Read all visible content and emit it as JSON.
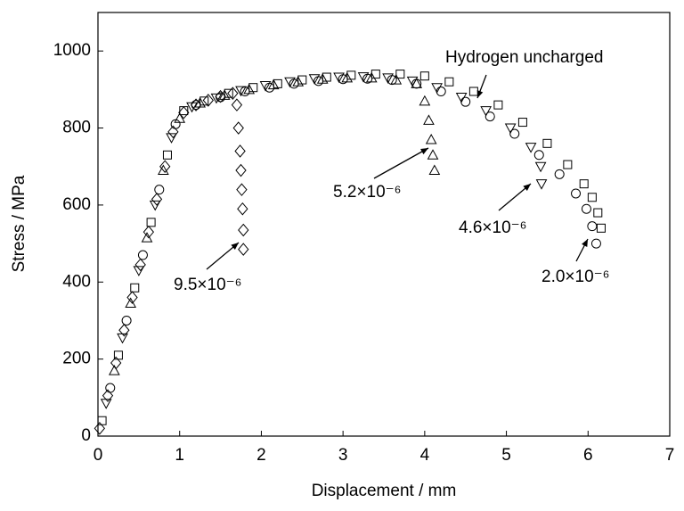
{
  "chart_data": {
    "type": "scatter",
    "x_label": "Displacement / mm",
    "y_label": "Stress / MPa",
    "xlim": [
      0,
      7
    ],
    "xticks": [
      0,
      1,
      2,
      3,
      4,
      5,
      6,
      7
    ],
    "ylim": [
      0,
      1100
    ],
    "yticks": [
      0,
      200,
      400,
      600,
      800,
      1000
    ],
    "series": [
      {
        "name": "Hydrogen uncharged",
        "marker": "square",
        "color": "#000000",
        "x": [
          0.05,
          0.25,
          0.45,
          0.65,
          0.85,
          1.05,
          1.3,
          1.6,
          1.9,
          2.2,
          2.5,
          2.8,
          3.1,
          3.4,
          3.7,
          4.0,
          4.3,
          4.6,
          4.9,
          5.2,
          5.5,
          5.75,
          5.95,
          6.05,
          6.12,
          6.16
        ],
        "values": [
          40,
          210,
          385,
          555,
          730,
          845,
          870,
          890,
          905,
          915,
          925,
          932,
          937,
          940,
          940,
          935,
          920,
          895,
          860,
          815,
          760,
          705,
          655,
          620,
          580,
          540
        ]
      },
      {
        "name": "2.0×10⁻⁶",
        "marker": "circle",
        "color": "#000000",
        "x": [
          0.15,
          0.35,
          0.55,
          0.75,
          0.95,
          1.2,
          1.5,
          1.8,
          2.1,
          2.4,
          2.7,
          3.0,
          3.3,
          3.6,
          3.9,
          4.2,
          4.5,
          4.8,
          5.1,
          5.4,
          5.65,
          5.85,
          5.98,
          6.05,
          6.1
        ],
        "values": [
          125,
          300,
          470,
          640,
          810,
          860,
          880,
          895,
          905,
          915,
          922,
          927,
          928,
          925,
          915,
          895,
          868,
          830,
          785,
          730,
          680,
          630,
          590,
          545,
          500
        ]
      },
      {
        "name": "4.6×10⁻⁶",
        "marker": "triangle-down",
        "color": "#000000",
        "x": [
          0.1,
          0.3,
          0.5,
          0.7,
          0.9,
          1.15,
          1.45,
          1.75,
          2.05,
          2.35,
          2.65,
          2.95,
          3.25,
          3.55,
          3.85,
          4.15,
          4.45,
          4.75,
          5.05,
          5.3,
          5.42,
          5.43
        ],
        "values": [
          85,
          255,
          430,
          600,
          775,
          855,
          878,
          897,
          910,
          920,
          928,
          932,
          933,
          930,
          922,
          905,
          880,
          845,
          800,
          750,
          700,
          655
        ]
      },
      {
        "name": "5.2×10⁻⁶",
        "marker": "triangle-up",
        "color": "#000000",
        "x": [
          0.2,
          0.4,
          0.6,
          0.8,
          1.0,
          1.25,
          1.55,
          1.85,
          2.15,
          2.45,
          2.75,
          3.05,
          3.35,
          3.65,
          3.9,
          4.0,
          4.05,
          4.08,
          4.1,
          4.12
        ],
        "values": [
          170,
          345,
          515,
          690,
          825,
          865,
          885,
          900,
          912,
          920,
          927,
          930,
          930,
          925,
          915,
          870,
          820,
          770,
          730,
          690
        ]
      },
      {
        "name": "9.5×10⁻⁶",
        "marker": "diamond",
        "color": "#000000",
        "x": [
          0.02,
          0.12,
          0.22,
          0.32,
          0.42,
          0.52,
          0.62,
          0.72,
          0.82,
          0.92,
          1.05,
          1.2,
          1.35,
          1.5,
          1.65,
          1.7,
          1.72,
          1.74,
          1.75,
          1.76,
          1.77,
          1.78,
          1.78
        ],
        "values": [
          20,
          105,
          190,
          275,
          360,
          445,
          530,
          615,
          700,
          790,
          840,
          860,
          872,
          882,
          890,
          860,
          800,
          740,
          690,
          640,
          590,
          535,
          485
        ]
      }
    ]
  }
}
